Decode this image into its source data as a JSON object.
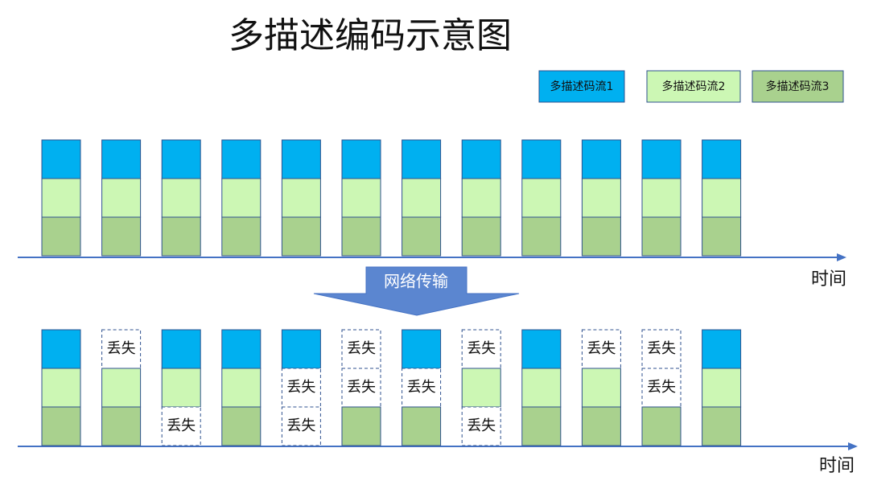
{
  "title": "多描述编码示意图",
  "legend": [
    "多描述码流1",
    "多描述码流2",
    "多描述码流3"
  ],
  "top_axis_label": "时间",
  "transmission_label": "网络传输",
  "bottom_axis_label": "时间",
  "received_columns": [
    [
      null,
      null,
      null
    ],
    [
      "丢失",
      null,
      null
    ],
    [
      null,
      null,
      "丢失"
    ],
    [
      null,
      null,
      null
    ],
    [
      null,
      "丢失",
      "丢失"
    ],
    [
      "丢失",
      "丢失",
      null
    ],
    [
      null,
      "丢失",
      null
    ],
    [
      "丢失",
      null,
      "丢失"
    ],
    [
      null,
      null,
      null
    ],
    [
      "丢失",
      null,
      null
    ],
    [
      "丢失",
      "丢失",
      null
    ],
    [
      null,
      null,
      null
    ]
  ]
}
